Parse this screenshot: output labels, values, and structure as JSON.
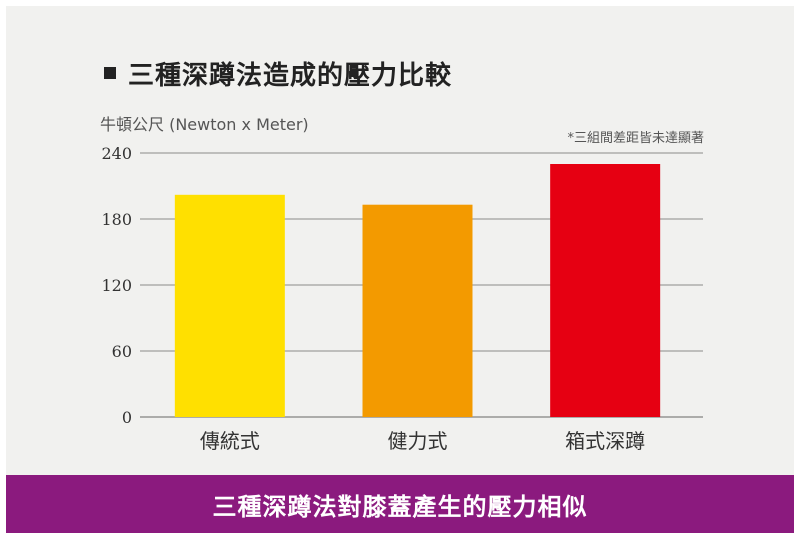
{
  "chart_data": {
    "type": "bar",
    "title": "三種深蹲法造成的壓力比較",
    "ylabel": "牛頓公尺 (Newton x Meter)",
    "annotation": "*三組間差距皆未達顯著",
    "categories": [
      "傳統式",
      "健力式",
      "箱式深蹲"
    ],
    "values": [
      202,
      193,
      230
    ],
    "colors": [
      "#ffe000",
      "#f39a00",
      "#e60012"
    ],
    "yticks": [
      "0",
      "60",
      "120",
      "180",
      "240"
    ],
    "ylim": [
      0,
      240
    ],
    "grid": true
  },
  "footer": {
    "text": "三種深蹲法對膝蓋產生的壓力相似"
  }
}
